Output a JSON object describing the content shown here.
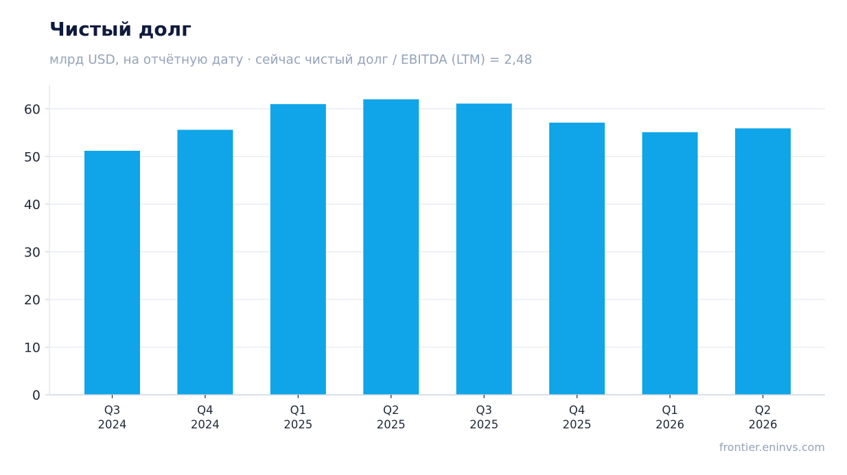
{
  "header": {
    "title": "Чистый долг",
    "subtitle": "млрд USD, на отчётную дату · сейчас чистый долг / EBITDA (LTM) = 2,48"
  },
  "footer": {
    "source": "frontier.eninvs.com"
  },
  "colors": {
    "bar": "#10a5e8",
    "grid": "#e3e8f0",
    "axis": "#cbd5e1",
    "title": "#0f1b3d",
    "muted": "#94a3b8",
    "tick_text": "#1f2937"
  },
  "chart_data": {
    "type": "bar",
    "categories": [
      [
        "Q3",
        "2024"
      ],
      [
        "Q4",
        "2024"
      ],
      [
        "Q1",
        "2025"
      ],
      [
        "Q2",
        "2025"
      ],
      [
        "Q3",
        "2025"
      ],
      [
        "Q4",
        "2025"
      ],
      [
        "Q1",
        "2026"
      ],
      [
        "Q2",
        "2026"
      ]
    ],
    "values": [
      51.2,
      55.6,
      61.0,
      62.0,
      61.1,
      57.1,
      55.1,
      55.9
    ],
    "y_ticks": [
      0,
      10,
      20,
      30,
      40,
      50,
      60
    ],
    "ylim": [
      0,
      65
    ],
    "grid": "horizontal",
    "legend": "none"
  }
}
